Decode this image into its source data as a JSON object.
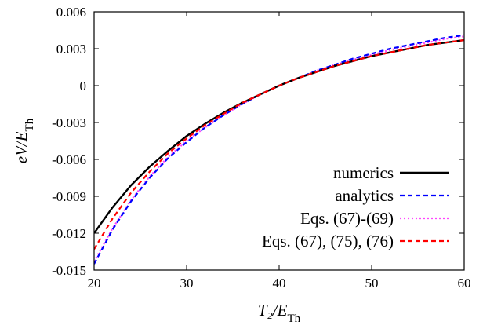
{
  "chart_data": {
    "type": "line",
    "xlabel": "T₂/E_Th",
    "ylabel": "eV/E_Th",
    "xlim": [
      20,
      60
    ],
    "ylim": [
      -0.015,
      0.006
    ],
    "x_ticks": [
      20,
      30,
      40,
      50,
      60
    ],
    "x_tick_labels": [
      "20",
      "30",
      "40",
      "50",
      "60"
    ],
    "y_ticks": [
      -0.015,
      -0.012,
      -0.009,
      -0.006,
      -0.003,
      0,
      0.003,
      0.006
    ],
    "y_tick_labels": [
      "-0.015",
      "-0.012",
      "-0.009",
      "-0.006",
      "-0.003",
      "0",
      "0.003",
      "0.006"
    ],
    "grid": false,
    "legend_position": "bottom-right",
    "series": [
      {
        "name": "numerics",
        "color": "#000000",
        "style": "solid",
        "x": [
          20,
          22,
          24,
          26,
          28,
          30,
          32,
          34,
          36,
          38,
          40,
          42,
          44,
          46,
          48,
          50,
          52,
          54,
          56,
          58,
          60
        ],
        "y": [
          -0.012,
          -0.0099,
          -0.0081,
          -0.0066,
          -0.0053,
          -0.0041,
          -0.0031,
          -0.0022,
          -0.0014,
          -0.0007,
          0.0,
          0.0006,
          0.0011,
          0.0016,
          0.002,
          0.0024,
          0.0027,
          0.003,
          0.0033,
          0.0035,
          0.0037
        ]
      },
      {
        "name": "analytics",
        "color": "#0000ff",
        "style": "dashed",
        "x": [
          20,
          22,
          24,
          26,
          28,
          30,
          32,
          34,
          36,
          38,
          40,
          42,
          44,
          46,
          48,
          50,
          52,
          54,
          56,
          58,
          60
        ],
        "y": [
          -0.0145,
          -0.0117,
          -0.0094,
          -0.0075,
          -0.0059,
          -0.0046,
          -0.0034,
          -0.0024,
          -0.0015,
          -0.0007,
          0.0,
          0.0006,
          0.0012,
          0.0017,
          0.0022,
          0.0026,
          0.003,
          0.0033,
          0.0036,
          0.0039,
          0.0041
        ]
      },
      {
        "name": "Eqs. (67)-(69)",
        "color": "#ff44ff",
        "style": "dotted",
        "x": [
          20,
          22,
          24,
          26,
          28,
          30,
          32,
          34,
          36,
          38,
          40,
          42,
          44,
          46,
          48,
          50,
          52,
          54,
          56,
          58,
          60
        ],
        "y": [
          -0.0143,
          -0.0116,
          -0.0093,
          -0.0074,
          -0.0058,
          -0.0045,
          -0.0034,
          -0.0024,
          -0.0015,
          -0.0007,
          0.0,
          0.0006,
          0.0012,
          0.0017,
          0.0021,
          0.0025,
          0.0029,
          0.0032,
          0.0035,
          0.0038,
          0.004
        ]
      },
      {
        "name": "Eqs. (67), (75), (76)",
        "color": "#ff0000",
        "style": "dashed",
        "x": [
          20,
          22,
          24,
          26,
          28,
          30,
          32,
          34,
          36,
          38,
          40,
          42,
          44,
          46,
          48,
          50,
          52,
          54,
          56,
          58,
          60
        ],
        "y": [
          -0.0133,
          -0.0108,
          -0.0087,
          -0.007,
          -0.0055,
          -0.0043,
          -0.0032,
          -0.0023,
          -0.0014,
          -0.0007,
          0.0,
          0.0006,
          0.0011,
          0.0016,
          0.002,
          0.0024,
          0.0027,
          0.003,
          0.0033,
          0.0035,
          0.0037
        ]
      }
    ]
  }
}
